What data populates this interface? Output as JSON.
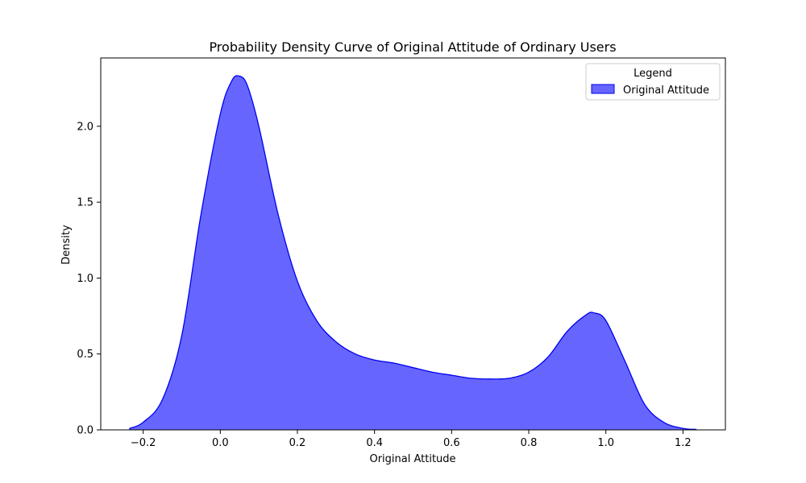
{
  "chart_data": {
    "type": "area",
    "title": "Probability Density Curve of Original Attitude of Ordinary Users",
    "xlabel": "Original Attitude",
    "ylabel": "Density",
    "xlim": [
      -0.31,
      1.31
    ],
    "ylim": [
      0,
      2.45
    ],
    "xticks": [
      -0.2,
      0.0,
      0.2,
      0.4,
      0.6,
      0.8,
      1.0,
      1.2
    ],
    "xtick_labels": [
      "−0.2",
      "0.0",
      "0.2",
      "0.4",
      "0.6",
      "0.8",
      "1.0",
      "1.2"
    ],
    "yticks": [
      0.0,
      0.5,
      1.0,
      1.5,
      2.0
    ],
    "ytick_labels": [
      "0.0",
      "0.5",
      "1.0",
      "1.5",
      "2.0"
    ],
    "grid": false,
    "legend": {
      "title": "Legend",
      "placement": "top-right",
      "entries": [
        "Original Attitude"
      ]
    },
    "series": [
      {
        "name": "Original Attitude",
        "color": "#0000ee",
        "fill": "#6666ff",
        "x": [
          -0.235,
          -0.2,
          -0.15,
          -0.1,
          -0.05,
          0.0,
          0.03,
          0.05,
          0.07,
          0.1,
          0.15,
          0.2,
          0.25,
          0.3,
          0.35,
          0.4,
          0.45,
          0.5,
          0.55,
          0.6,
          0.65,
          0.7,
          0.75,
          0.8,
          0.85,
          0.9,
          0.95,
          0.97,
          1.0,
          1.05,
          1.1,
          1.15,
          1.2,
          1.235
        ],
        "y": [
          0.01,
          0.05,
          0.2,
          0.62,
          1.42,
          2.08,
          2.3,
          2.33,
          2.27,
          2.0,
          1.42,
          0.98,
          0.72,
          0.58,
          0.5,
          0.46,
          0.44,
          0.41,
          0.38,
          0.36,
          0.34,
          0.335,
          0.34,
          0.38,
          0.48,
          0.65,
          0.76,
          0.77,
          0.72,
          0.45,
          0.17,
          0.05,
          0.01,
          0.003
        ]
      }
    ]
  }
}
